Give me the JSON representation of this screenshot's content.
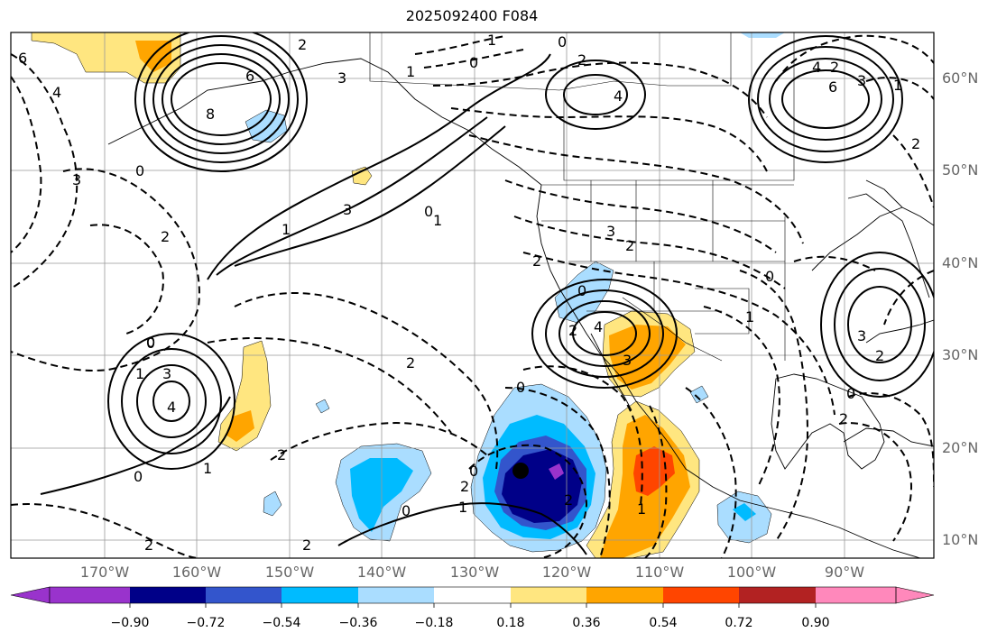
{
  "title": "2025092400 F084",
  "lat_labels": [
    "60°N",
    "50°N",
    "40°N",
    "30°N",
    "20°N",
    "10°N"
  ],
  "lon_labels": [
    "170°W",
    "160°W",
    "150°W",
    "140°W",
    "130°W",
    "120°W",
    "110°W",
    "100°W",
    "90°W"
  ],
  "colorbar": {
    "ticks": [
      "−0.90",
      "−0.72",
      "−0.54",
      "−0.36",
      "−0.18",
      "0.18",
      "0.36",
      "0.54",
      "0.72",
      "0.90"
    ],
    "colors": [
      "#9933cc",
      "#000088",
      "#3355cc",
      "#00bbff",
      "#aaddff",
      "#ffffff",
      "#ffe680",
      "#ffa500",
      "#ff4500",
      "#b22222",
      "#ff88bb"
    ]
  },
  "contour_labels": [
    "6",
    "4",
    "6",
    "2",
    "3",
    "1",
    "0",
    "2",
    "4",
    "1",
    "0",
    "2",
    "3",
    "1",
    "2",
    "3",
    "0",
    "2",
    "0",
    "1",
    "6",
    "4",
    "8",
    "3",
    "1",
    "0",
    "2",
    "3",
    "2",
    "0",
    "1",
    "4",
    "2",
    "0",
    "2",
    "0",
    "3",
    "1",
    "2",
    "1",
    "2",
    "4",
    "3",
    "1",
    "2",
    "0",
    "3",
    "2",
    "0",
    "2",
    "0",
    "0",
    "2",
    "1",
    "0",
    "2"
  ]
}
